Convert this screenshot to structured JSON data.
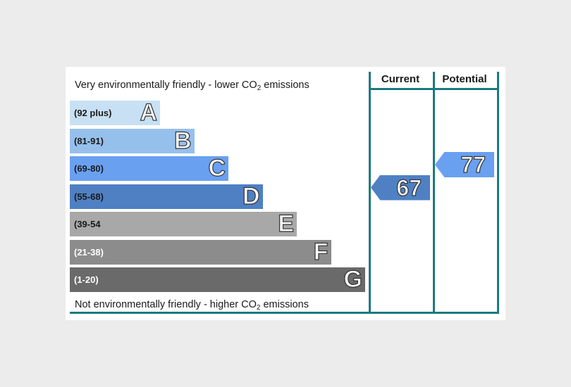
{
  "chart_data": {
    "type": "bar",
    "title_top": "Very environmentally friendly - lower CO",
    "title_top_suffix": "emissions",
    "title_bottom": "Not environmentally friendly - higher CO",
    "title_bottom_suffix": "emissions",
    "subscript": "2",
    "columns": [
      "Current",
      "Potential"
    ],
    "bands": [
      {
        "letter": "A",
        "range": "(92 plus)",
        "min": 92,
        "color": "#c7e0f4",
        "text_color": "#1a1a1a"
      },
      {
        "letter": "B",
        "range": "(81-91)",
        "min": 81,
        "color": "#96c0ec",
        "text_color": "#1a1a1a"
      },
      {
        "letter": "C",
        "range": "(69-80)",
        "min": 69,
        "color": "#6aa0f0",
        "text_color": "#1a1a1a"
      },
      {
        "letter": "D",
        "range": "(55-68)",
        "min": 55,
        "color": "#4f80c4",
        "text_color": "#1a1a1a"
      },
      {
        "letter": "E",
        "range": "(39-54",
        "min": 39,
        "color": "#a8a8a8",
        "text_color": "#1a1a1a"
      },
      {
        "letter": "F",
        "range": "(21-38)",
        "min": 21,
        "color": "#8c8c8c",
        "text_color": "#ffffff"
      },
      {
        "letter": "G",
        "range": "(1-20)",
        "min": 1,
        "color": "#6a6a6a",
        "text_color": "#ffffff"
      }
    ],
    "current": {
      "value": 67,
      "band": "D",
      "color": "#4f80c4"
    },
    "potential": {
      "value": 77,
      "band": "C",
      "color": "#6aa0f0"
    }
  }
}
